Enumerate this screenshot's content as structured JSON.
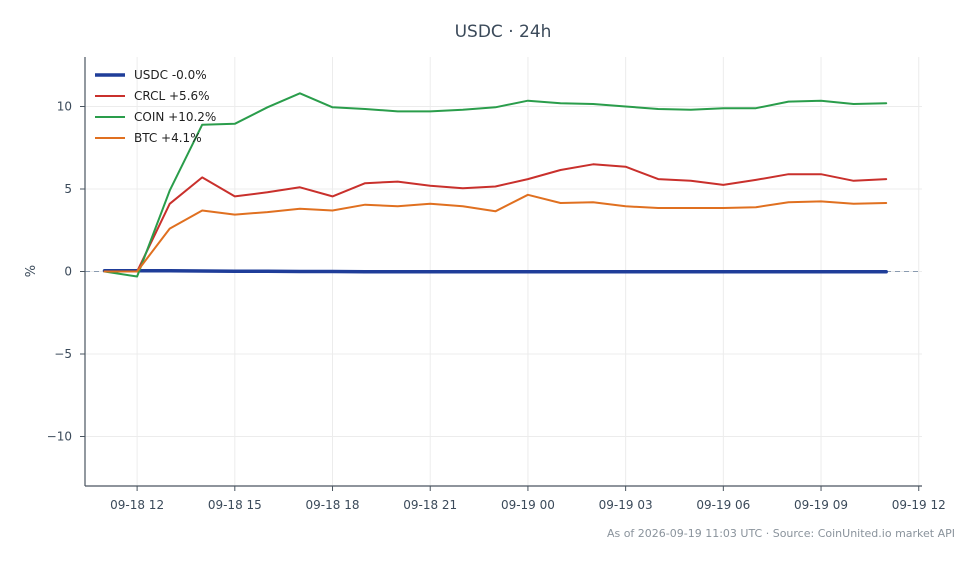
{
  "chart_data": {
    "type": "line",
    "title": "USDC · 24h",
    "xlabel": "",
    "ylabel": "%",
    "ylim": [
      -13,
      13
    ],
    "xlim": [
      "09-18 10:24",
      "09-19 12:06"
    ],
    "grid": true,
    "legend_position": "top-left",
    "x": [
      "09-18 11:00",
      "09-18 12:00",
      "09-18 13:00",
      "09-18 14:00",
      "09-18 15:00",
      "09-18 16:00",
      "09-18 17:00",
      "09-18 18:00",
      "09-18 19:00",
      "09-18 20:00",
      "09-18 21:00",
      "09-18 22:00",
      "09-18 23:00",
      "09-19 00:00",
      "09-19 01:00",
      "09-19 02:00",
      "09-19 03:00",
      "09-19 04:00",
      "09-19 05:00",
      "09-19 06:00",
      "09-19 07:00",
      "09-19 08:00",
      "09-19 09:00",
      "09-19 10:00",
      "09-19 11:00"
    ],
    "x_ticks": [
      {
        "value": "09-18 12:00",
        "label": "09-18 12"
      },
      {
        "value": "09-18 15:00",
        "label": "09-18 15"
      },
      {
        "value": "09-18 18:00",
        "label": "09-18 18"
      },
      {
        "value": "09-18 21:00",
        "label": "09-18 21"
      },
      {
        "value": "09-19 00:00",
        "label": "09-19 00"
      },
      {
        "value": "09-19 03:00",
        "label": "09-19 03"
      },
      {
        "value": "09-19 06:00",
        "label": "09-19 06"
      },
      {
        "value": "09-19 09:00",
        "label": "09-19 09"
      },
      {
        "value": "09-19 12:00",
        "label": "09-19 12"
      }
    ],
    "y_ticks": [
      {
        "value": 10,
        "label": "10"
      },
      {
        "value": 5,
        "label": "5"
      },
      {
        "value": 0,
        "label": "0"
      },
      {
        "value": -5,
        "label": "−5"
      },
      {
        "value": -10,
        "label": "−10"
      }
    ],
    "reference_line": {
      "y": 0,
      "style": "dashed",
      "color": "#8a9bb0"
    },
    "series": [
      {
        "name": "USDC -0.0%",
        "color": "#1f3d99",
        "width": 3.5,
        "values": [
          0.05,
          0.05,
          0.05,
          0.03,
          0.02,
          0.01,
          0.0,
          0.0,
          -0.01,
          -0.01,
          -0.01,
          -0.01,
          -0.01,
          -0.01,
          -0.01,
          -0.01,
          -0.01,
          -0.01,
          -0.01,
          -0.01,
          -0.01,
          -0.01,
          -0.01,
          -0.01,
          -0.01
        ]
      },
      {
        "name": "CRCL +5.6%",
        "color": "#c9302c",
        "width": 2,
        "values": [
          0.0,
          0.0,
          4.1,
          5.7,
          4.55,
          4.8,
          5.1,
          4.55,
          5.35,
          5.45,
          5.2,
          5.05,
          5.15,
          5.6,
          6.15,
          6.5,
          6.35,
          5.6,
          5.5,
          5.25,
          5.55,
          5.9,
          5.9,
          5.5,
          5.6
        ]
      },
      {
        "name": "COIN +10.2%",
        "color": "#2a9d4b",
        "width": 2,
        "values": [
          0.0,
          -0.3,
          4.9,
          8.9,
          8.95,
          9.95,
          10.8,
          9.95,
          9.85,
          9.7,
          9.7,
          9.8,
          9.95,
          10.35,
          10.2,
          10.15,
          10.0,
          9.85,
          9.8,
          9.9,
          9.9,
          10.3,
          10.35,
          10.15,
          10.2
        ]
      },
      {
        "name": "BTC +4.1%",
        "color": "#e07020",
        "width": 2,
        "values": [
          0.0,
          0.0,
          2.6,
          3.7,
          3.45,
          3.6,
          3.8,
          3.7,
          4.05,
          3.95,
          4.1,
          3.95,
          3.65,
          4.65,
          4.15,
          4.2,
          3.95,
          3.85,
          3.85,
          3.85,
          3.9,
          4.2,
          4.25,
          4.1,
          4.15
        ]
      }
    ]
  },
  "footer": "As of 2026-09-19 11:03 UTC · Source: CoinUnited.io market API"
}
